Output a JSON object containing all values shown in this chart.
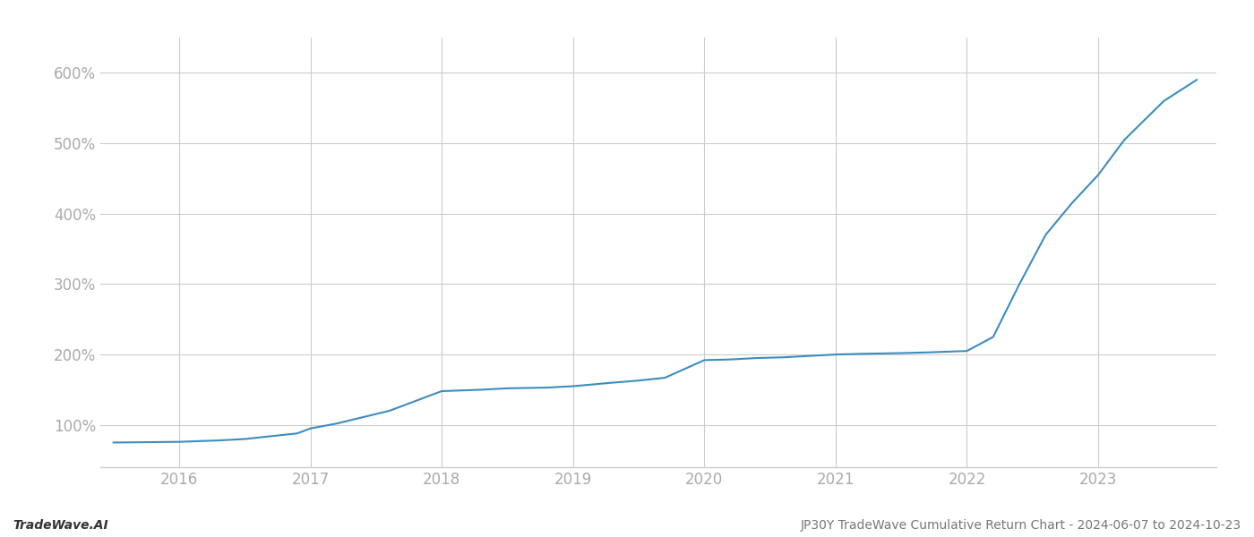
{
  "title": "JP30Y TradeWave Cumulative Return Chart - 2024-06-07 to 2024-10-23",
  "watermark": "TradeWave.AI",
  "line_color": "#3c8dbf",
  "background_color": "#ffffff",
  "grid_color": "#cccccc",
  "x_years": [
    2016,
    2017,
    2018,
    2019,
    2020,
    2021,
    2022,
    2023
  ],
  "x_values": [
    2015.5,
    2016.0,
    2016.3,
    2016.5,
    2016.9,
    2017.0,
    2017.2,
    2017.6,
    2018.0,
    2018.3,
    2018.5,
    2018.8,
    2019.0,
    2019.3,
    2019.5,
    2019.7,
    2020.0,
    2020.2,
    2020.4,
    2020.6,
    2021.0,
    2021.2,
    2021.5,
    2021.7,
    2022.0,
    2022.2,
    2022.4,
    2022.6,
    2022.8,
    2023.0,
    2023.2,
    2023.5,
    2023.75
  ],
  "y_values": [
    75,
    76,
    78,
    80,
    88,
    95,
    102,
    120,
    148,
    150,
    152,
    153,
    155,
    160,
    163,
    167,
    192,
    193,
    195,
    196,
    200,
    201,
    202,
    203,
    205,
    225,
    300,
    370,
    415,
    455,
    505,
    560,
    590
  ],
  "ylim": [
    40,
    650
  ],
  "xlim": [
    2015.4,
    2023.9
  ],
  "yticks": [
    100,
    200,
    300,
    400,
    500,
    600
  ],
  "ytick_labels": [
    "100%",
    "200%",
    "300%",
    "400%",
    "500%",
    "600%"
  ],
  "line_width": 1.5,
  "title_fontsize": 10,
  "watermark_fontsize": 10,
  "tick_fontsize": 12,
  "tick_color": "#aaaaaa",
  "axis_color": "#cccccc",
  "watermark_color": "#333333",
  "title_color": "#777777"
}
